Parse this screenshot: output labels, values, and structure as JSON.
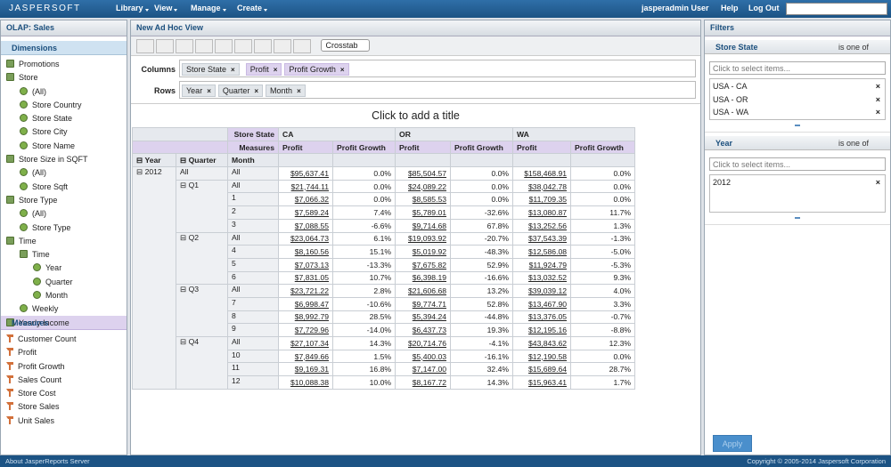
{
  "topbar": {
    "logo": "JASPERSOFT",
    "menu": [
      "Library",
      "View",
      "Manage",
      "Create"
    ],
    "user": "jasperadmin User",
    "links": [
      "Help",
      "Log Out"
    ]
  },
  "left": {
    "title": "OLAP: Sales",
    "dimensions_header": "Dimensions",
    "dimensions": [
      {
        "label": "Promotions"
      },
      {
        "label": "Store",
        "children": [
          {
            "label": "(All)"
          },
          {
            "label": "Store Country"
          },
          {
            "label": "Store State"
          },
          {
            "label": "Store City"
          },
          {
            "label": "Store Name"
          }
        ]
      },
      {
        "label": "Store Size in SQFT",
        "children": [
          {
            "label": "(All)"
          },
          {
            "label": "Store Sqft"
          }
        ]
      },
      {
        "label": "Store Type",
        "children": [
          {
            "label": "(All)"
          },
          {
            "label": "Store Type"
          }
        ]
      },
      {
        "label": "Time",
        "children": [
          {
            "label": "Time",
            "children": [
              {
                "label": "Year"
              },
              {
                "label": "Quarter"
              },
              {
                "label": "Month"
              }
            ]
          },
          {
            "label": "Weekly"
          }
        ]
      },
      {
        "label": "Yearly Income"
      }
    ],
    "measures_header": "Measures",
    "measures": [
      "Customer Count",
      "Profit",
      "Profit Growth",
      "Sales Count",
      "Store Cost",
      "Store Sales",
      "Unit Sales"
    ]
  },
  "center": {
    "title": "New Ad Hoc View",
    "view_type": "Crosstab",
    "columns_label": "Columns",
    "columns": [
      "Store State",
      "Profit",
      "Profit Growth"
    ],
    "rows_label": "Rows",
    "rows": [
      "Year",
      "Quarter",
      "Month"
    ],
    "title_placeholder": "Click to add a title"
  },
  "crosstab": {
    "column_dimension": "Store State",
    "states": [
      "CA",
      "OR",
      "WA"
    ],
    "measures_label": "Measures",
    "measures": [
      "Profit",
      "Profit Growth"
    ],
    "row_headers": [
      "Year",
      "Quarter",
      "Month"
    ],
    "year": "2012",
    "year_total": {
      "quarter": "All",
      "month": "All",
      "values": [
        "$95,637.41",
        "0.0%",
        "$85,504.57",
        "0.0%",
        "$158,468.91",
        "0.0%"
      ]
    },
    "quarters": [
      {
        "label": "Q1",
        "rows": [
          {
            "month": "All",
            "values": [
              "$21,744.11",
              "0.0%",
              "$24,089.22",
              "0.0%",
              "$38,042.78",
              "0.0%"
            ]
          },
          {
            "month": "1",
            "values": [
              "$7,066.32",
              "0.0%",
              "$8,585.53",
              "0.0%",
              "$11,709.35",
              "0.0%"
            ]
          },
          {
            "month": "2",
            "values": [
              "$7,589.24",
              "7.4%",
              "$5,789.01",
              "-32.6%",
              "$13,080.87",
              "11.7%"
            ]
          },
          {
            "month": "3",
            "values": [
              "$7,088.55",
              "-6.6%",
              "$9,714.68",
              "67.8%",
              "$13,252.56",
              "1.3%"
            ]
          }
        ]
      },
      {
        "label": "Q2",
        "rows": [
          {
            "month": "All",
            "values": [
              "$23,064.73",
              "6.1%",
              "$19,093.92",
              "-20.7%",
              "$37,543.39",
              "-1.3%"
            ]
          },
          {
            "month": "4",
            "values": [
              "$8,160.56",
              "15.1%",
              "$5,019.92",
              "-48.3%",
              "$12,586.08",
              "-5.0%"
            ]
          },
          {
            "month": "5",
            "values": [
              "$7,073.13",
              "-13.3%",
              "$7,675.82",
              "52.9%",
              "$11,924.79",
              "-5.3%"
            ]
          },
          {
            "month": "6",
            "values": [
              "$7,831.05",
              "10.7%",
              "$6,398.19",
              "-16.6%",
              "$13,032.52",
              "9.3%"
            ]
          }
        ]
      },
      {
        "label": "Q3",
        "rows": [
          {
            "month": "All",
            "values": [
              "$23,721.22",
              "2.8%",
              "$21,606.68",
              "13.2%",
              "$39,039.12",
              "4.0%"
            ]
          },
          {
            "month": "7",
            "values": [
              "$6,998.47",
              "-10.6%",
              "$9,774.71",
              "52.8%",
              "$13,467.90",
              "3.3%"
            ]
          },
          {
            "month": "8",
            "values": [
              "$8,992.79",
              "28.5%",
              "$5,394.24",
              "-44.8%",
              "$13,376.05",
              "-0.7%"
            ]
          },
          {
            "month": "9",
            "values": [
              "$7,729.96",
              "-14.0%",
              "$6,437.73",
              "19.3%",
              "$12,195.16",
              "-8.8%"
            ]
          }
        ]
      },
      {
        "label": "Q4",
        "rows": [
          {
            "month": "All",
            "values": [
              "$27,107.34",
              "14.3%",
              "$20,714.76",
              "-4.1%",
              "$43,843.62",
              "12.3%"
            ]
          },
          {
            "month": "10",
            "values": [
              "$7,849.66",
              "1.5%",
              "$5,400.03",
              "-16.1%",
              "$12,190.58",
              "0.0%"
            ]
          },
          {
            "month": "11",
            "values": [
              "$9,169.31",
              "16.8%",
              "$7,147.00",
              "32.4%",
              "$15,689.64",
              "28.7%"
            ]
          },
          {
            "month": "12",
            "values": [
              "$10,088.38",
              "10.0%",
              "$8,167.72",
              "14.3%",
              "$15,963.41",
              "1.7%"
            ]
          }
        ]
      }
    ]
  },
  "filters": {
    "title": "Filters",
    "items": [
      {
        "name": "Store State",
        "operator": "is one of",
        "placeholder": "Click to select items...",
        "selected": [
          "USA - CA",
          "USA - OR",
          "USA - WA"
        ]
      },
      {
        "name": "Year",
        "operator": "is one of",
        "placeholder": "Click to select items...",
        "selected": [
          "2012"
        ]
      }
    ],
    "apply": "Apply"
  },
  "footer": {
    "about": "About JasperReports Server",
    "copyright": "Copyright © 2005-2014 Jaspersoft Corporation"
  }
}
